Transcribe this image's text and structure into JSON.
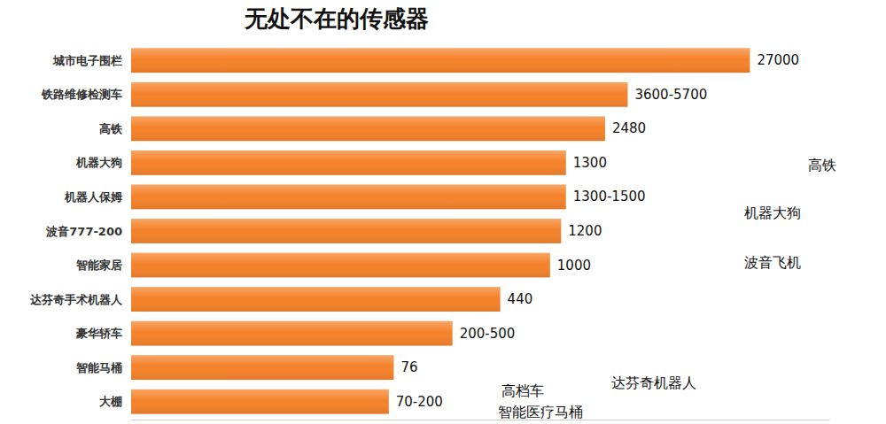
{
  "chart_data": {
    "type": "bar",
    "title": "无处不在的传感器",
    "orientation": "horizontal",
    "log": "x",
    "categories": [
      "城市电子围栏",
      "铁路维修检测车",
      "高铁",
      "机器大狗",
      "机器人保姆",
      "波音777-200",
      "智能家居",
      "达芬奇手术机器人",
      "豪华轿车",
      "智能马桶",
      "大棚"
    ],
    "values": [
      27000,
      3600,
      2480,
      1300,
      1300,
      1200,
      1000,
      440,
      200,
      76,
      70
    ],
    "value_labels": [
      "27000",
      "3600-5700",
      "2480",
      "1300",
      "1300-1500",
      "1200",
      "1000",
      "440",
      "200-500",
      "76",
      "70-200"
    ],
    "color": "#f5822a",
    "xlim": [
      1,
      100000
    ],
    "data_labels": true,
    "tick_labels": false,
    "grid": false,
    "annotations": [
      "高铁",
      "机器大狗",
      "波音飞机",
      "达芬奇机器人",
      "高档车",
      "智能医疗马桶"
    ]
  }
}
